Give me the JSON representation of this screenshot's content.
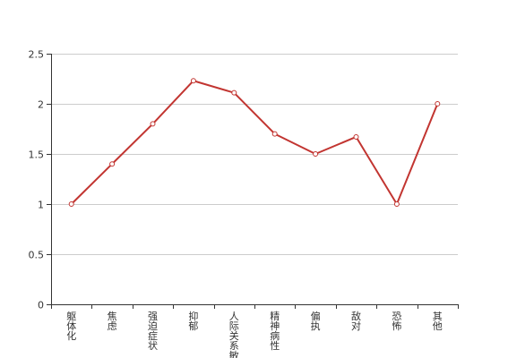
{
  "chart_data": {
    "type": "line",
    "title": "",
    "xlabel": "",
    "ylabel": "",
    "categories": [
      "躯体化",
      "焦虑",
      "强迫症状",
      "抑郁",
      "人际关系敏感",
      "精神病性",
      "偏执",
      "敌对",
      "恐怖",
      "其他"
    ],
    "series": [
      {
        "values": [
          1.0,
          1.4,
          1.8,
          2.23,
          2.11,
          1.7,
          1.5,
          1.67,
          1.0,
          2.0
        ]
      }
    ],
    "ylim": [
      0,
      2.5
    ],
    "yticks": [
      "0",
      "0.5",
      "1",
      "1.5",
      "2",
      "2.5"
    ],
    "grid": true,
    "legend": "none",
    "colors": {
      "line": "#c23531",
      "grid": "#cccccc",
      "axis": "#333333",
      "marker_fill": "#ffffff"
    }
  }
}
